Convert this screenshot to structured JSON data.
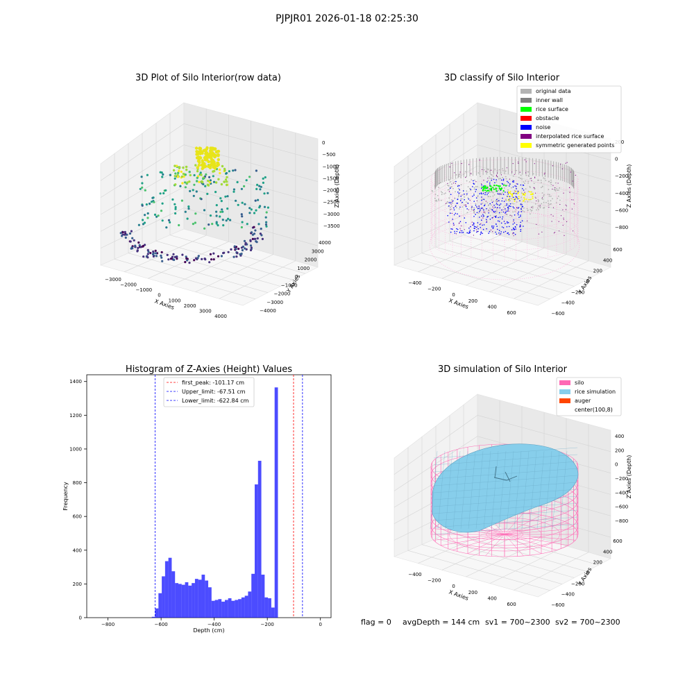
{
  "suptitle": "PJPJR01 2026-01-18 02:25:30",
  "chart_data": [
    {
      "type": "scatter",
      "title": "3D Plot of Silo Interior(row data)",
      "xlabel": "X Axies",
      "ylabel": "Y Axies",
      "zlabel": "Z Axies (Depth)",
      "x_ticks": [
        "−3000",
        "−2000",
        "−1000",
        "0",
        "1000",
        "2000",
        "3000",
        "4000"
      ],
      "y_ticks": [
        "−4000",
        "−3000",
        "−2000",
        "−1000",
        "0",
        "1000",
        "2000",
        "3000",
        "4000"
      ],
      "z_ticks": [
        "0",
        "−500",
        "−1000",
        "−1500",
        "−2000",
        "−2500",
        "−3000",
        "−3500"
      ],
      "colormap": "viridis"
    },
    {
      "type": "scatter",
      "title": "3D classify of Silo Interior",
      "xlabel": "X Axies",
      "ylabel": "Y Axies",
      "zlabel": "Z Axies (Depth)",
      "x_ticks": [
        "−400",
        "−200",
        "0",
        "200",
        "400",
        "600"
      ],
      "y_ticks": [
        "−600",
        "−400",
        "−200",
        "0",
        "200",
        "400",
        "600"
      ],
      "z_ticks": [
        "200",
        "0",
        "−200",
        "−400",
        "−600",
        "−800"
      ],
      "legend": [
        {
          "label": "original data",
          "color": "#b3b3b3"
        },
        {
          "label": "inner wall",
          "color": "#808080"
        },
        {
          "label": "rice surface",
          "color": "#00ff00"
        },
        {
          "label": "obstacle",
          "color": "#ff0000"
        },
        {
          "label": "noise",
          "color": "#0000ff"
        },
        {
          "label": "interpolated rice surface",
          "color": "#800080"
        },
        {
          "label": "symmetric generated points",
          "color": "#ffff00"
        }
      ],
      "legend_position": "top-right"
    },
    {
      "type": "bar",
      "title": "Histogram of Z-Axies (Height) Values",
      "xlabel": "Depth (cm)",
      "ylabel": "Frequency",
      "xlim": [
        -880,
        40
      ],
      "ylim": [
        0,
        1440
      ],
      "x_ticks": [
        -800,
        -600,
        -400,
        -200,
        0
      ],
      "x_tick_labels": [
        "−800",
        "−600",
        "−400",
        "−200",
        "0"
      ],
      "y_ticks": [
        0,
        200,
        400,
        600,
        800,
        1000,
        1200,
        1400
      ],
      "bin_width": 12.5,
      "bin_start": -635,
      "values": [
        5,
        55,
        145,
        245,
        335,
        355,
        275,
        205,
        200,
        195,
        210,
        190,
        205,
        230,
        225,
        255,
        220,
        180,
        100,
        105,
        110,
        95,
        105,
        115,
        100,
        105,
        110,
        120,
        130,
        155,
        260,
        790,
        930,
        255,
        120,
        115,
        60,
        1365
      ],
      "color": "#0000ff",
      "vlines": [
        {
          "label": "first_peak: -101.17 cm",
          "x": -101.17,
          "color": "#ff0000"
        },
        {
          "label": "Upper_limit: -67.51 cm",
          "x": -67.51,
          "color": "#0000ff"
        },
        {
          "label": "Lower_limit: -622.84 cm",
          "x": -622.84,
          "color": "#0000ff"
        }
      ],
      "legend_position": "upper-center"
    },
    {
      "type": "surface",
      "title": "3D simulation of Silo Interior",
      "xlabel": "X Axies",
      "ylabel": "Y Axies",
      "zlabel": "Z Axies (Depth)",
      "x_ticks": [
        "−400",
        "−200",
        "0",
        "200",
        "400",
        "600"
      ],
      "y_ticks": [
        "−600",
        "−400",
        "−200",
        "0",
        "200",
        "400",
        "600"
      ],
      "z_ticks": [
        "400",
        "200",
        "0",
        "−200",
        "−400",
        "−600",
        "−800"
      ],
      "legend": [
        {
          "label": "silo",
          "color": "#ff69b4"
        },
        {
          "label": "rice simulation",
          "color": "#87ceeb"
        },
        {
          "label": "auger",
          "color": "#ff4500"
        },
        {
          "label": "center(100,8)",
          "color": "#ffffff"
        }
      ],
      "legend_position": "top-right"
    }
  ],
  "footer": {
    "flag": "flag = 0",
    "avg": "avgDepth = 144 cm",
    "sv1": "sv1 = 700~2300",
    "sv2": "sv2 = 700~2300"
  }
}
